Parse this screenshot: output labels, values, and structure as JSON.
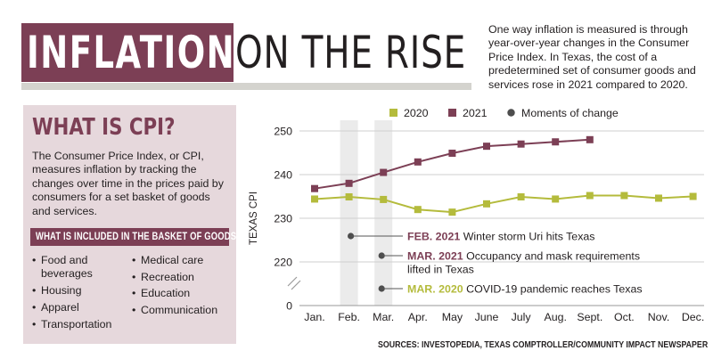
{
  "title": {
    "highlight": "INFLATION",
    "rest": "ON THE RISE"
  },
  "intro": "One way inflation is measured is through year-over-year changes in the Consumer Price Index. In Texas, the cost of a predetermined set of consumer goods and services rose in 2021 compared to 2020.",
  "sidebar": {
    "heading": "WHAT IS CPI?",
    "body": "The Consumer Price Index, or CPI, measures inflation by tracking the changes over time in the prices paid by consumers for a set basket of goods and services.",
    "band": "WHAT IS INCLUDED IN THE BASKET OF GOODS?",
    "items_left": [
      "Food and beverages",
      "Housing",
      "Apparel",
      "Transportation"
    ],
    "items_right": [
      "Medical care",
      "Recreation",
      "Education",
      "Communication"
    ]
  },
  "colors": {
    "accent": "#7c3f55",
    "line_2020": "#b4bb3c",
    "band_fill": "#e6d8dc",
    "highlight_bar": "#ebebeb",
    "gray_dot": "#4d4d4d"
  },
  "source": "SOURCES: INVESTOPEDIA, TEXAS COMPTROLLER/COMMUNITY IMPACT NEWSPAPER",
  "chart_data": {
    "type": "line",
    "categories": [
      "Jan.",
      "Feb.",
      "Mar.",
      "Apr.",
      "May",
      "June",
      "July",
      "Aug.",
      "Sept.",
      "Oct.",
      "Nov.",
      "Dec."
    ],
    "ylabel": "TEXAS CPI",
    "yticks": [
      0,
      220,
      230,
      240,
      250
    ],
    "ylim": [
      215,
      251
    ],
    "axis_break": true,
    "legend_position": "top",
    "series": [
      {
        "name": "2020",
        "color": "#b4bb3c",
        "values": [
          234.4,
          234.9,
          234.3,
          232.0,
          231.4,
          233.3,
          234.9,
          234.4,
          235.2,
          235.2,
          234.6,
          235.0
        ]
      },
      {
        "name": "2021",
        "color": "#7c3f55",
        "values": [
          236.8,
          238.0,
          240.5,
          242.9,
          244.9,
          246.5,
          247.0,
          247.5,
          248.0,
          null,
          null,
          null
        ]
      }
    ],
    "highlight_months": [
      "Feb.",
      "Mar."
    ],
    "moments_legend": "Moments of change",
    "annotations": [
      {
        "bold": "FEB. 2021",
        "text": "Winter storm Uri hits Texas",
        "color": "#7c3f55"
      },
      {
        "bold": "MAR. 2021",
        "text": "Occupancy and mask requirements lifted in Texas",
        "color": "#7c3f55"
      },
      {
        "bold": "MAR. 2020",
        "text": "COVID-19 pandemic reaches Texas",
        "color": "#b4bb3c"
      }
    ]
  }
}
